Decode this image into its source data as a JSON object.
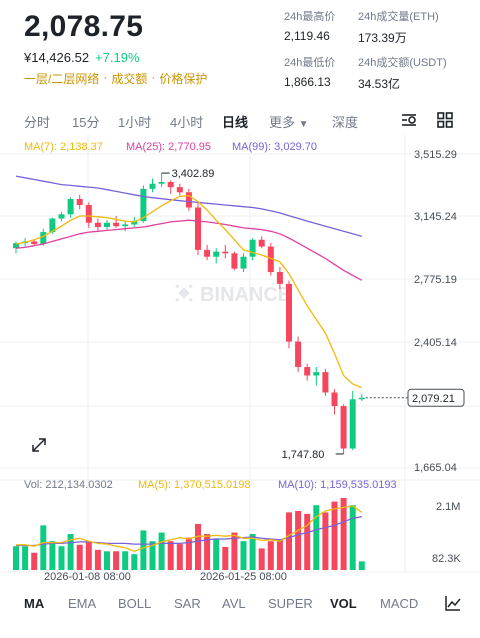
{
  "header": {
    "price": "2,078.75",
    "fiat_price": "¥14,426.52",
    "change_pct": "+7.19%",
    "tags": [
      "一层/二层网络",
      "成交额",
      "价格保护"
    ]
  },
  "stats": {
    "high_label": "24h最高价",
    "high": "2,119.46",
    "low_label": "24h最低价",
    "low": "1,866.13",
    "vol_eth_label": "24h成交量(ETH)",
    "vol_eth": "173.39万",
    "vol_usdt_label": "24h成交额(USDT)",
    "vol_usdt": "34.53亿"
  },
  "intervals": [
    "分时",
    "15分",
    "1小时",
    "4小时",
    "日线",
    "更多",
    "深度"
  ],
  "active_interval": "日线",
  "ma_legend": {
    "ma7": "MA(7): 2,138.37",
    "ma25": "MA(25): 2,770.95",
    "ma99": "MA(99): 3,029.70"
  },
  "vol_legend": {
    "vol": "Vol: 212,134.0302",
    "ma5": "MA(5): 1,370,515.0198",
    "ma10": "MA(10): 1,159,535.0193"
  },
  "watermark": "BINANCE",
  "price_axis": [
    "3,515.29",
    "3,145.24",
    "2,775.19",
    "2,405.14",
    "1,665.04"
  ],
  "current_price_tag": "2,079.21",
  "annotations": {
    "high": "3,402.89",
    "low": "1,747.80"
  },
  "volume_axis": [
    "2.1M",
    "82.3K"
  ],
  "date_axis": [
    "2026-01-08 08:00",
    "2026-01-25 08:00"
  ],
  "indicators": [
    "MA",
    "EMA",
    "BOLL",
    "SAR",
    "AVL",
    "SUPER",
    "VOL",
    "MACD"
  ],
  "active_indicators": [
    "MA",
    "VOL"
  ],
  "colors": {
    "up": "#0ecb81",
    "down": "#f6465d",
    "ma7": "#f0b90b",
    "ma25": "#e040a0",
    "ma99": "#7b61d9"
  },
  "chart_data": {
    "type": "candlestick",
    "price_range": [
      1665.04,
      3515.29
    ],
    "candles": [
      {
        "o": 2960,
        "h": 3000,
        "l": 2930,
        "c": 2990
      },
      {
        "o": 2990,
        "h": 3020,
        "l": 2970,
        "c": 3000
      },
      {
        "o": 3000,
        "h": 3010,
        "l": 2975,
        "c": 2985
      },
      {
        "o": 2985,
        "h": 3075,
        "l": 2975,
        "c": 3055
      },
      {
        "o": 3055,
        "h": 3140,
        "l": 3045,
        "c": 3135
      },
      {
        "o": 3135,
        "h": 3175,
        "l": 3120,
        "c": 3160
      },
      {
        "o": 3160,
        "h": 3260,
        "l": 3140,
        "c": 3250
      },
      {
        "o": 3250,
        "h": 3275,
        "l": 3190,
        "c": 3215
      },
      {
        "o": 3215,
        "h": 3230,
        "l": 3080,
        "c": 3110
      },
      {
        "o": 3110,
        "h": 3135,
        "l": 3065,
        "c": 3085
      },
      {
        "o": 3085,
        "h": 3125,
        "l": 3070,
        "c": 3110
      },
      {
        "o": 3110,
        "h": 3150,
        "l": 3080,
        "c": 3090
      },
      {
        "o": 3090,
        "h": 3120,
        "l": 3060,
        "c": 3100
      },
      {
        "o": 3100,
        "h": 3145,
        "l": 3085,
        "c": 3120
      },
      {
        "o": 3120,
        "h": 3330,
        "l": 3110,
        "c": 3310
      },
      {
        "o": 3310,
        "h": 3370,
        "l": 3290,
        "c": 3340
      },
      {
        "o": 3340,
        "h": 3402.89,
        "l": 3320,
        "c": 3350
      },
      {
        "o": 3350,
        "h": 3360,
        "l": 3280,
        "c": 3320
      },
      {
        "o": 3320,
        "h": 3340,
        "l": 3270,
        "c": 3290
      },
      {
        "o": 3290,
        "h": 3310,
        "l": 3180,
        "c": 3200
      },
      {
        "o": 3200,
        "h": 3230,
        "l": 2920,
        "c": 2950
      },
      {
        "o": 2950,
        "h": 2980,
        "l": 2890,
        "c": 2910
      },
      {
        "o": 2910,
        "h": 2960,
        "l": 2870,
        "c": 2940
      },
      {
        "o": 2940,
        "h": 2980,
        "l": 2900,
        "c": 2930
      },
      {
        "o": 2930,
        "h": 2940,
        "l": 2830,
        "c": 2840
      },
      {
        "o": 2840,
        "h": 2930,
        "l": 2820,
        "c": 2910
      },
      {
        "o": 2910,
        "h": 3020,
        "l": 2890,
        "c": 3010
      },
      {
        "o": 3010,
        "h": 3030,
        "l": 2960,
        "c": 2970
      },
      {
        "o": 2970,
        "h": 2990,
        "l": 2800,
        "c": 2820
      },
      {
        "o": 2820,
        "h": 2850,
        "l": 2720,
        "c": 2750
      },
      {
        "o": 2750,
        "h": 2770,
        "l": 2370,
        "c": 2410
      },
      {
        "o": 2410,
        "h": 2440,
        "l": 2230,
        "c": 2260
      },
      {
        "o": 2260,
        "h": 2280,
        "l": 2180,
        "c": 2210
      },
      {
        "o": 2210,
        "h": 2260,
        "l": 2150,
        "c": 2230
      },
      {
        "o": 2230,
        "h": 2250,
        "l": 2090,
        "c": 2110
      },
      {
        "o": 2110,
        "h": 2130,
        "l": 1980,
        "c": 2030
      },
      {
        "o": 2030,
        "h": 2040,
        "l": 1747.8,
        "c": 1780
      },
      {
        "o": 1780,
        "h": 2119.46,
        "l": 1770,
        "c": 2070
      },
      {
        "o": 2070,
        "h": 2100,
        "l": 2060,
        "c": 2078.75
      }
    ],
    "ma7": [
      2985,
      2995,
      3010,
      3030,
      3060,
      3090,
      3125,
      3150,
      3150,
      3145,
      3140,
      3130,
      3120,
      3115,
      3140,
      3175,
      3210,
      3240,
      3265,
      3270,
      3235,
      3185,
      3125,
      3070,
      3010,
      2950,
      2935,
      2920,
      2900,
      2880,
      2810,
      2715,
      2620,
      2540,
      2460,
      2340,
      2210,
      2160,
      2138
    ],
    "ma25": [
      2960,
      2965,
      2975,
      2985,
      3000,
      3015,
      3030,
      3045,
      3055,
      3060,
      3065,
      3070,
      3075,
      3080,
      3085,
      3095,
      3105,
      3115,
      3120,
      3125,
      3120,
      3115,
      3108,
      3100,
      3090,
      3080,
      3075,
      3070,
      3060,
      3045,
      3020,
      2990,
      2960,
      2930,
      2900,
      2865,
      2830,
      2800,
      2771
    ],
    "ma99": [
      3385,
      3375,
      3365,
      3355,
      3345,
      3335,
      3330,
      3325,
      3320,
      3315,
      3305,
      3295,
      3285,
      3275,
      3265,
      3258,
      3252,
      3246,
      3240,
      3235,
      3230,
      3225,
      3220,
      3215,
      3210,
      3205,
      3200,
      3192,
      3180,
      3168,
      3152,
      3136,
      3120,
      3105,
      3090,
      3075,
      3060,
      3045,
      3030
    ],
    "volumes": [
      0.33,
      0.33,
      0.24,
      0.62,
      0.4,
      0.33,
      0.5,
      0.35,
      0.4,
      0.28,
      0.26,
      0.26,
      0.26,
      0.22,
      0.55,
      0.4,
      0.52,
      0.4,
      0.36,
      0.45,
      0.64,
      0.5,
      0.44,
      0.32,
      0.52,
      0.4,
      0.5,
      0.3,
      0.4,
      0.42,
      0.8,
      0.82,
      0.78,
      0.9,
      0.8,
      0.95,
      1.0,
      0.9,
      0.12
    ],
    "vol_ma5": [
      0.35,
      0.35,
      0.33,
      0.38,
      0.38,
      0.38,
      0.42,
      0.44,
      0.4,
      0.37,
      0.36,
      0.33,
      0.31,
      0.26,
      0.31,
      0.34,
      0.39,
      0.42,
      0.45,
      0.43,
      0.47,
      0.47,
      0.48,
      0.47,
      0.48,
      0.44,
      0.44,
      0.41,
      0.42,
      0.4,
      0.48,
      0.55,
      0.62,
      0.74,
      0.82,
      0.85,
      0.87,
      0.89,
      0.8
    ],
    "vol_ma10": [
      0.34,
      0.34,
      0.34,
      0.36,
      0.37,
      0.37,
      0.38,
      0.39,
      0.39,
      0.38,
      0.37,
      0.37,
      0.37,
      0.36,
      0.36,
      0.36,
      0.37,
      0.37,
      0.37,
      0.38,
      0.4,
      0.42,
      0.43,
      0.43,
      0.44,
      0.45,
      0.46,
      0.44,
      0.43,
      0.42,
      0.45,
      0.49,
      0.52,
      0.56,
      0.59,
      0.62,
      0.67,
      0.72,
      0.74
    ]
  }
}
